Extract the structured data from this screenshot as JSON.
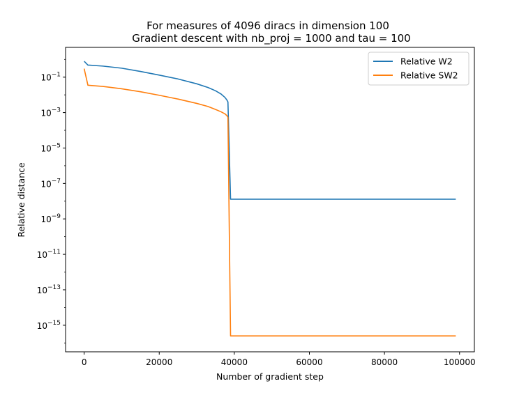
{
  "chart_data": {
    "type": "line",
    "title": "For measures of 4096 diracs in dimension 100",
    "subtitle": "Gradient descent with nb_proj = 1000 and tau = 100",
    "xlabel": "Number of gradient step",
    "ylabel": "Relative distance",
    "yscale": "log",
    "xlim": [
      -4950,
      103950
    ],
    "ylim_log10": [
      -16.5,
      0.68
    ],
    "grid": false,
    "legend_position": "top-right",
    "x_ticks": [
      {
        "value": 0,
        "label": "0"
      },
      {
        "value": 20000,
        "label": "20000"
      },
      {
        "value": 40000,
        "label": "40000"
      },
      {
        "value": 60000,
        "label": "60000"
      },
      {
        "value": 80000,
        "label": "80000"
      },
      {
        "value": 100000,
        "label": "100000"
      }
    ],
    "y_ticks": [
      {
        "exp": -1,
        "base": "10",
        "sup": "−1"
      },
      {
        "exp": -3,
        "base": "10",
        "sup": "−3"
      },
      {
        "exp": -5,
        "base": "10",
        "sup": "−5"
      },
      {
        "exp": -7,
        "base": "10",
        "sup": "−7"
      },
      {
        "exp": -9,
        "base": "10",
        "sup": "−9"
      },
      {
        "exp": -11,
        "base": "10",
        "sup": "−11"
      },
      {
        "exp": -13,
        "base": "10",
        "sup": "−13"
      },
      {
        "exp": -15,
        "base": "10",
        "sup": "−15"
      }
    ],
    "series": [
      {
        "name": "Relative W2",
        "color": "#1f77b4",
        "x": [
          0,
          1000,
          5000,
          10000,
          15000,
          20000,
          25000,
          30000,
          33000,
          35000,
          36500,
          37500,
          38000,
          38300,
          39000,
          40000,
          50000,
          60000,
          70000,
          80000,
          90000,
          99000
        ],
        "y": [
          0.79,
          0.48,
          0.42,
          0.32,
          0.21,
          0.13,
          0.079,
          0.042,
          0.026,
          0.017,
          0.011,
          0.0072,
          0.0052,
          0.004,
          1.3e-08,
          1.3e-08,
          1.3e-08,
          1.3e-08,
          1.3e-08,
          1.3e-08,
          1.3e-08,
          1.3e-08
        ]
      },
      {
        "name": "Relative SW2",
        "color": "#ff7f0e",
        "x": [
          0,
          1000,
          5000,
          10000,
          15000,
          20000,
          25000,
          30000,
          33000,
          35000,
          36500,
          37500,
          38000,
          38300,
          39000,
          40000,
          50000,
          60000,
          70000,
          80000,
          90000,
          99000
        ],
        "y": [
          0.3,
          0.035,
          0.03,
          0.022,
          0.015,
          0.0095,
          0.0058,
          0.0033,
          0.0022,
          0.0015,
          0.0011,
          0.00085,
          0.00068,
          0.00055,
          2.5e-16,
          2.5e-16,
          2.5e-16,
          2.5e-16,
          2.5e-16,
          2.5e-16,
          2.5e-16,
          2.5e-16
        ]
      }
    ]
  }
}
